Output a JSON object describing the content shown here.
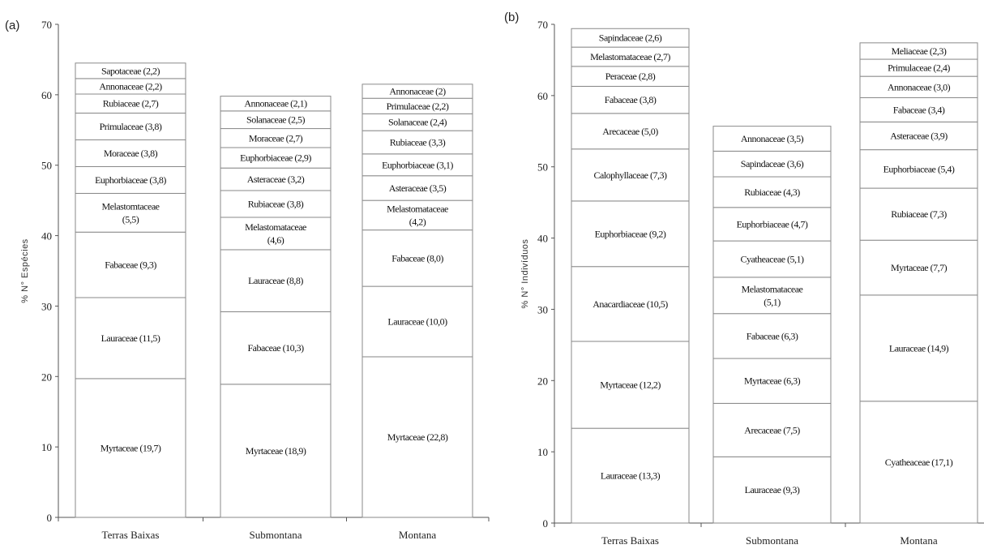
{
  "chart_data": [
    {
      "panel": "(a)",
      "type": "bar",
      "stacked": true,
      "ylabel": "% N° Espécies",
      "ylim": [
        0,
        70
      ],
      "yticks": [
        0,
        10,
        20,
        30,
        40,
        50,
        60,
        70
      ],
      "grid": false,
      "categories": [
        "Terras Baixas",
        "Submontana",
        "Montana"
      ],
      "stacks": [
        {
          "category": "Terras Baixas",
          "segments": [
            {
              "label": "Myrtaceae (19,7)",
              "value": 19.7
            },
            {
              "label": "Lauraceae (11,5)",
              "value": 11.5
            },
            {
              "label": "Fabaceae (9,3)",
              "value": 9.3
            },
            {
              "label": "Melastomtaceae\n(5,5)",
              "value": 5.5
            },
            {
              "label": "Euphorbiaceae (3,8)",
              "value": 3.8
            },
            {
              "label": "Moraceae (3,8)",
              "value": 3.8
            },
            {
              "label": "Primulaceae (3,8)",
              "value": 3.8
            },
            {
              "label": "Rubiaceae (2,7)",
              "value": 2.7
            },
            {
              "label": "Annonaceae (2,2)",
              "value": 2.2
            },
            {
              "label": "Sapotaceae (2,2)",
              "value": 2.2
            }
          ]
        },
        {
          "category": "Submontana",
          "segments": [
            {
              "label": "Myrtaceae (18,9)",
              "value": 18.9
            },
            {
              "label": "Fabaceae (10,3)",
              "value": 10.3
            },
            {
              "label": "Lauraceae (8,8)",
              "value": 8.8
            },
            {
              "label": "Melastomataceae\n(4,6)",
              "value": 4.6
            },
            {
              "label": "Rubiaceae (3,8)",
              "value": 3.8
            },
            {
              "label": "Asteraceae (3,2)",
              "value": 3.2
            },
            {
              "label": "Euphorbiaceae (2,9)",
              "value": 2.9
            },
            {
              "label": "Moraceae (2,7)",
              "value": 2.7
            },
            {
              "label": "Solanaceae (2,5)",
              "value": 2.5
            },
            {
              "label": "Annonaceae (2,1)",
              "value": 2.1
            }
          ]
        },
        {
          "category": "Montana",
          "segments": [
            {
              "label": "Myrtaceae (22,8)",
              "value": 22.8
            },
            {
              "label": "Lauraceae (10,0)",
              "value": 10.0
            },
            {
              "label": "Fabaceae (8,0)",
              "value": 8.0
            },
            {
              "label": "Melastomataceae\n(4,2)",
              "value": 4.2
            },
            {
              "label": "Asteraceae (3,5)",
              "value": 3.5
            },
            {
              "label": "Euphorbiaceae (3,1)",
              "value": 3.1
            },
            {
              "label": "Rubiaceae (3,3)",
              "value": 3.3
            },
            {
              "label": "Solanaceae (2,4)",
              "value": 2.4
            },
            {
              "label": "Primulaceae (2,2)",
              "value": 2.2
            },
            {
              "label": "Annonaceae (2)",
              "value": 2.0
            }
          ]
        }
      ]
    },
    {
      "panel": "(b)",
      "type": "bar",
      "stacked": true,
      "ylabel": "% N° Indivíduos",
      "ylim": [
        0,
        70
      ],
      "yticks": [
        0,
        10,
        20,
        30,
        40,
        50,
        60,
        70
      ],
      "grid": false,
      "categories": [
        "Terras Baixas",
        "Submontana",
        "Montana"
      ],
      "stacks": [
        {
          "category": "Terras Baixas",
          "segments": [
            {
              "label": "Lauraceae (13,3)",
              "value": 13.3
            },
            {
              "label": "Myrtaceae (12,2)",
              "value": 12.2
            },
            {
              "label": "Anacardiaceae (10,5)",
              "value": 10.5
            },
            {
              "label": "Euphorbiaceae (9,2)",
              "value": 9.2
            },
            {
              "label": "Calophyllaceae (7,3)",
              "value": 7.3
            },
            {
              "label": "Arecaceae (5,0)",
              "value": 5.0
            },
            {
              "label": "Fabaceae (3,8)",
              "value": 3.8
            },
            {
              "label": "Peraceae (2,8)",
              "value": 2.8
            },
            {
              "label": "Melastomataceae (2,7)",
              "value": 2.7
            },
            {
              "label": "Sapindaceae (2,6)",
              "value": 2.6
            }
          ]
        },
        {
          "category": "Submontana",
          "segments": [
            {
              "label": "Lauraceae (9,3)",
              "value": 9.3
            },
            {
              "label": "Arecaceae (7,5)",
              "value": 7.5
            },
            {
              "label": "Myrtaceae (6,3)",
              "value": 6.3
            },
            {
              "label": "Fabaceae (6,3)",
              "value": 6.3
            },
            {
              "label": "Melastomataceae\n(5,1)",
              "value": 5.1
            },
            {
              "label": "Cyatheaceae (5,1)",
              "value": 5.1
            },
            {
              "label": "Euphorbiaceae (4,7)",
              "value": 4.7
            },
            {
              "label": "Rubiaceae (4,3)",
              "value": 4.3
            },
            {
              "label": "Sapindaceae (3,6)",
              "value": 3.6
            },
            {
              "label": "Annonaceae (3,5)",
              "value": 3.5
            }
          ]
        },
        {
          "category": "Montana",
          "segments": [
            {
              "label": "Cyatheaceae (17,1)",
              "value": 17.1
            },
            {
              "label": "Lauraceae (14,9)",
              "value": 14.9
            },
            {
              "label": "Myrtaceae (7,7)",
              "value": 7.7
            },
            {
              "label": "Rubiaceae (7,3)",
              "value": 7.3
            },
            {
              "label": "Euphorbiaceae (5,4)",
              "value": 5.4
            },
            {
              "label": "Asteraceae (3,9)",
              "value": 3.9
            },
            {
              "label": "Fabaceae (3,4)",
              "value": 3.4
            },
            {
              "label": "Annonaceae (3,0)",
              "value": 3.0
            },
            {
              "label": "Primulaceae (2,4)",
              "value": 2.4
            },
            {
              "label": "Meliaceae (2,3)",
              "value": 2.3
            }
          ]
        }
      ]
    }
  ]
}
